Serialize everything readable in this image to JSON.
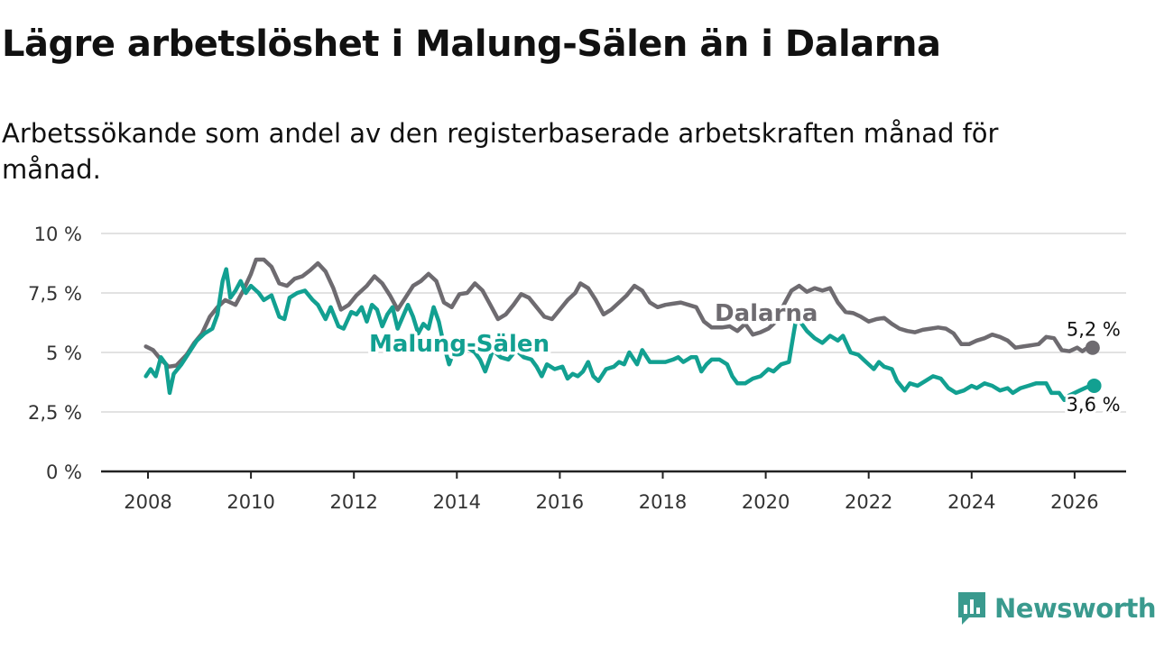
{
  "title": "Lägre arbetslöshet i Malung-Sälen än i Dalarna",
  "subtitle": "Arbetssökande som andel av den registerbaserade arbetskraften månad för månad.",
  "brand": {
    "name": "Newsworthy",
    "icon": "newsworthy-logo-icon",
    "color": "#3a9a8e"
  },
  "chart_data": {
    "type": "line",
    "title": "Lägre arbetslöshet i Malung-Sälen än i Dalarna",
    "xlabel": "",
    "ylabel": "",
    "xlim": [
      2007.5,
      2027.0
    ],
    "ylim": [
      0,
      10
    ],
    "grid": true,
    "x_ticks": [
      2008,
      2010,
      2012,
      2014,
      2016,
      2018,
      2020,
      2022,
      2024,
      2026
    ],
    "x_tick_labels": [
      "2008",
      "2010",
      "2012",
      "2014",
      "2016",
      "2018",
      "2020",
      "2022",
      "2024",
      "2026"
    ],
    "y_ticks": [
      0,
      2.5,
      5,
      7.5,
      10
    ],
    "y_tick_labels": [
      "0 %",
      "2,5 %",
      "5 %",
      "7,5 %",
      "10 %"
    ],
    "series": [
      {
        "name": "Dalarna",
        "color": "#6e6b70",
        "end_label": "5,2 %",
        "points": [
          [
            2007.96,
            5.25
          ],
          [
            2008.1,
            5.1
          ],
          [
            2008.25,
            4.7
          ],
          [
            2008.4,
            4.4
          ],
          [
            2008.55,
            4.45
          ],
          [
            2008.75,
            4.9
          ],
          [
            2008.9,
            5.4
          ],
          [
            2009.05,
            5.8
          ],
          [
            2009.2,
            6.5
          ],
          [
            2009.35,
            6.9
          ],
          [
            2009.5,
            7.2
          ],
          [
            2009.7,
            7.0
          ],
          [
            2009.85,
            7.6
          ],
          [
            2010.0,
            8.3
          ],
          [
            2010.1,
            8.9
          ],
          [
            2010.25,
            8.9
          ],
          [
            2010.4,
            8.6
          ],
          [
            2010.55,
            7.9
          ],
          [
            2010.7,
            7.8
          ],
          [
            2010.85,
            8.1
          ],
          [
            2011.0,
            8.2
          ],
          [
            2011.15,
            8.45
          ],
          [
            2011.3,
            8.75
          ],
          [
            2011.45,
            8.4
          ],
          [
            2011.6,
            7.7
          ],
          [
            2011.75,
            6.8
          ],
          [
            2011.9,
            7.0
          ],
          [
            2012.05,
            7.4
          ],
          [
            2012.25,
            7.8
          ],
          [
            2012.4,
            8.2
          ],
          [
            2012.55,
            7.9
          ],
          [
            2012.7,
            7.4
          ],
          [
            2012.85,
            6.8
          ],
          [
            2013.0,
            7.3
          ],
          [
            2013.15,
            7.8
          ],
          [
            2013.3,
            8.0
          ],
          [
            2013.45,
            8.3
          ],
          [
            2013.6,
            8.0
          ],
          [
            2013.75,
            7.1
          ],
          [
            2013.9,
            6.9
          ],
          [
            2014.05,
            7.45
          ],
          [
            2014.2,
            7.5
          ],
          [
            2014.35,
            7.9
          ],
          [
            2014.5,
            7.6
          ],
          [
            2014.65,
            7.0
          ],
          [
            2014.8,
            6.4
          ],
          [
            2014.95,
            6.6
          ],
          [
            2015.1,
            7.0
          ],
          [
            2015.25,
            7.45
          ],
          [
            2015.4,
            7.3
          ],
          [
            2015.55,
            6.9
          ],
          [
            2015.7,
            6.5
          ],
          [
            2015.85,
            6.4
          ],
          [
            2016.0,
            6.8
          ],
          [
            2016.15,
            7.2
          ],
          [
            2016.3,
            7.5
          ],
          [
            2016.4,
            7.9
          ],
          [
            2016.55,
            7.7
          ],
          [
            2016.7,
            7.2
          ],
          [
            2016.85,
            6.6
          ],
          [
            2017.0,
            6.8
          ],
          [
            2017.15,
            7.1
          ],
          [
            2017.3,
            7.4
          ],
          [
            2017.45,
            7.8
          ],
          [
            2017.6,
            7.6
          ],
          [
            2017.75,
            7.1
          ],
          [
            2017.9,
            6.9
          ],
          [
            2018.05,
            7.0
          ],
          [
            2018.2,
            7.05
          ],
          [
            2018.35,
            7.1
          ],
          [
            2018.5,
            7.0
          ],
          [
            2018.65,
            6.9
          ],
          [
            2018.8,
            6.3
          ],
          [
            2018.95,
            6.05
          ],
          [
            2019.15,
            6.05
          ],
          [
            2019.3,
            6.1
          ],
          [
            2019.45,
            5.9
          ],
          [
            2019.6,
            6.2
          ],
          [
            2019.75,
            5.75
          ],
          [
            2019.9,
            5.85
          ],
          [
            2020.05,
            6.0
          ],
          [
            2020.2,
            6.3
          ],
          [
            2020.35,
            7.0
          ],
          [
            2020.5,
            7.6
          ],
          [
            2020.65,
            7.8
          ],
          [
            2020.8,
            7.55
          ],
          [
            2020.95,
            7.7
          ],
          [
            2021.1,
            7.6
          ],
          [
            2021.25,
            7.7
          ],
          [
            2021.4,
            7.1
          ],
          [
            2021.55,
            6.7
          ],
          [
            2021.7,
            6.65
          ],
          [
            2021.85,
            6.5
          ],
          [
            2022.0,
            6.3
          ],
          [
            2022.15,
            6.4
          ],
          [
            2022.3,
            6.45
          ],
          [
            2022.45,
            6.2
          ],
          [
            2022.6,
            6.0
          ],
          [
            2022.75,
            5.9
          ],
          [
            2022.9,
            5.85
          ],
          [
            2023.05,
            5.95
          ],
          [
            2023.2,
            6.0
          ],
          [
            2023.35,
            6.05
          ],
          [
            2023.5,
            6.0
          ],
          [
            2023.65,
            5.8
          ],
          [
            2023.8,
            5.35
          ],
          [
            2023.95,
            5.35
          ],
          [
            2024.1,
            5.5
          ],
          [
            2024.25,
            5.6
          ],
          [
            2024.4,
            5.75
          ],
          [
            2024.55,
            5.65
          ],
          [
            2024.7,
            5.5
          ],
          [
            2024.85,
            5.2
          ],
          [
            2025.0,
            5.25
          ],
          [
            2025.15,
            5.3
          ],
          [
            2025.3,
            5.35
          ],
          [
            2025.45,
            5.65
          ],
          [
            2025.6,
            5.6
          ],
          [
            2025.75,
            5.1
          ],
          [
            2025.9,
            5.05
          ],
          [
            2026.05,
            5.2
          ],
          [
            2026.15,
            5.05
          ],
          [
            2026.25,
            5.2
          ],
          [
            2026.35,
            5.2
          ]
        ]
      },
      {
        "name": "Malung-Sälen",
        "color": "#12a091",
        "end_label": "3,6 %",
        "points": [
          [
            2007.96,
            4.0
          ],
          [
            2008.05,
            4.3
          ],
          [
            2008.15,
            4.0
          ],
          [
            2008.25,
            4.8
          ],
          [
            2008.35,
            4.5
          ],
          [
            2008.42,
            3.3
          ],
          [
            2008.5,
            4.1
          ],
          [
            2008.65,
            4.5
          ],
          [
            2008.8,
            5.0
          ],
          [
            2008.95,
            5.5
          ],
          [
            2009.1,
            5.8
          ],
          [
            2009.25,
            6.0
          ],
          [
            2009.35,
            6.6
          ],
          [
            2009.45,
            8.0
          ],
          [
            2009.52,
            8.5
          ],
          [
            2009.6,
            7.3
          ],
          [
            2009.7,
            7.6
          ],
          [
            2009.8,
            8.0
          ],
          [
            2009.9,
            7.5
          ],
          [
            2010.0,
            7.8
          ],
          [
            2010.15,
            7.5
          ],
          [
            2010.25,
            7.2
          ],
          [
            2010.4,
            7.4
          ],
          [
            2010.55,
            6.5
          ],
          [
            2010.65,
            6.4
          ],
          [
            2010.75,
            7.3
          ],
          [
            2010.9,
            7.5
          ],
          [
            2011.05,
            7.6
          ],
          [
            2011.2,
            7.2
          ],
          [
            2011.3,
            7.0
          ],
          [
            2011.45,
            6.4
          ],
          [
            2011.55,
            6.9
          ],
          [
            2011.7,
            6.1
          ],
          [
            2011.8,
            6.0
          ],
          [
            2011.95,
            6.7
          ],
          [
            2012.05,
            6.6
          ],
          [
            2012.15,
            6.9
          ],
          [
            2012.25,
            6.3
          ],
          [
            2012.35,
            7.0
          ],
          [
            2012.45,
            6.8
          ],
          [
            2012.55,
            6.1
          ],
          [
            2012.65,
            6.6
          ],
          [
            2012.75,
            6.9
          ],
          [
            2012.85,
            6.0
          ],
          [
            2012.95,
            6.5
          ],
          [
            2013.05,
            7.0
          ],
          [
            2013.15,
            6.5
          ],
          [
            2013.25,
            5.8
          ],
          [
            2013.35,
            6.2
          ],
          [
            2013.45,
            6.0
          ],
          [
            2013.55,
            6.9
          ],
          [
            2013.65,
            6.3
          ],
          [
            2013.75,
            5.3
          ],
          [
            2013.85,
            4.5
          ],
          [
            2014.0,
            5.4
          ],
          [
            2014.15,
            5.3
          ],
          [
            2014.35,
            5.0
          ],
          [
            2014.45,
            4.7
          ],
          [
            2014.55,
            4.2
          ],
          [
            2014.7,
            5.1
          ],
          [
            2014.85,
            4.8
          ],
          [
            2015.0,
            4.7
          ],
          [
            2015.15,
            5.1
          ],
          [
            2015.3,
            4.8
          ],
          [
            2015.45,
            4.7
          ],
          [
            2015.55,
            4.4
          ],
          [
            2015.65,
            4.0
          ],
          [
            2015.75,
            4.5
          ],
          [
            2015.9,
            4.3
          ],
          [
            2016.05,
            4.4
          ],
          [
            2016.15,
            3.9
          ],
          [
            2016.25,
            4.1
          ],
          [
            2016.35,
            4.0
          ],
          [
            2016.45,
            4.2
          ],
          [
            2016.55,
            4.6
          ],
          [
            2016.65,
            4.0
          ],
          [
            2016.75,
            3.8
          ],
          [
            2016.9,
            4.3
          ],
          [
            2017.05,
            4.4
          ],
          [
            2017.15,
            4.6
          ],
          [
            2017.25,
            4.5
          ],
          [
            2017.35,
            5.0
          ],
          [
            2017.5,
            4.5
          ],
          [
            2017.6,
            5.1
          ],
          [
            2017.75,
            4.6
          ],
          [
            2017.9,
            4.6
          ],
          [
            2018.05,
            4.6
          ],
          [
            2018.2,
            4.7
          ],
          [
            2018.3,
            4.8
          ],
          [
            2018.4,
            4.6
          ],
          [
            2018.55,
            4.8
          ],
          [
            2018.65,
            4.8
          ],
          [
            2018.75,
            4.2
          ],
          [
            2018.85,
            4.5
          ],
          [
            2018.95,
            4.7
          ],
          [
            2019.1,
            4.7
          ],
          [
            2019.25,
            4.5
          ],
          [
            2019.35,
            4.0
          ],
          [
            2019.45,
            3.7
          ],
          [
            2019.6,
            3.7
          ],
          [
            2019.75,
            3.9
          ],
          [
            2019.9,
            4.0
          ],
          [
            2020.05,
            4.3
          ],
          [
            2020.15,
            4.2
          ],
          [
            2020.3,
            4.5
          ],
          [
            2020.45,
            4.6
          ],
          [
            2020.55,
            5.9
          ],
          [
            2020.6,
            6.5
          ],
          [
            2020.7,
            6.2
          ],
          [
            2020.8,
            5.9
          ],
          [
            2020.95,
            5.6
          ],
          [
            2021.1,
            5.4
          ],
          [
            2021.25,
            5.7
          ],
          [
            2021.4,
            5.5
          ],
          [
            2021.5,
            5.7
          ],
          [
            2021.65,
            5.0
          ],
          [
            2021.8,
            4.9
          ],
          [
            2021.95,
            4.6
          ],
          [
            2022.1,
            4.3
          ],
          [
            2022.2,
            4.6
          ],
          [
            2022.3,
            4.4
          ],
          [
            2022.45,
            4.3
          ],
          [
            2022.55,
            3.8
          ],
          [
            2022.7,
            3.4
          ],
          [
            2022.8,
            3.7
          ],
          [
            2022.95,
            3.6
          ],
          [
            2023.1,
            3.8
          ],
          [
            2023.25,
            4.0
          ],
          [
            2023.4,
            3.9
          ],
          [
            2023.55,
            3.5
          ],
          [
            2023.7,
            3.3
          ],
          [
            2023.85,
            3.4
          ],
          [
            2024.0,
            3.6
          ],
          [
            2024.1,
            3.5
          ],
          [
            2024.25,
            3.7
          ],
          [
            2024.4,
            3.6
          ],
          [
            2024.55,
            3.4
          ],
          [
            2024.7,
            3.5
          ],
          [
            2024.8,
            3.3
          ],
          [
            2024.95,
            3.5
          ],
          [
            2025.1,
            3.6
          ],
          [
            2025.25,
            3.7
          ],
          [
            2025.45,
            3.7
          ],
          [
            2025.55,
            3.3
          ],
          [
            2025.7,
            3.3
          ],
          [
            2025.8,
            3.0
          ],
          [
            2025.9,
            3.2
          ],
          [
            2026.0,
            3.3
          ],
          [
            2026.1,
            3.4
          ],
          [
            2026.2,
            3.5
          ],
          [
            2026.3,
            3.6
          ],
          [
            2026.38,
            3.6
          ]
        ]
      }
    ]
  }
}
